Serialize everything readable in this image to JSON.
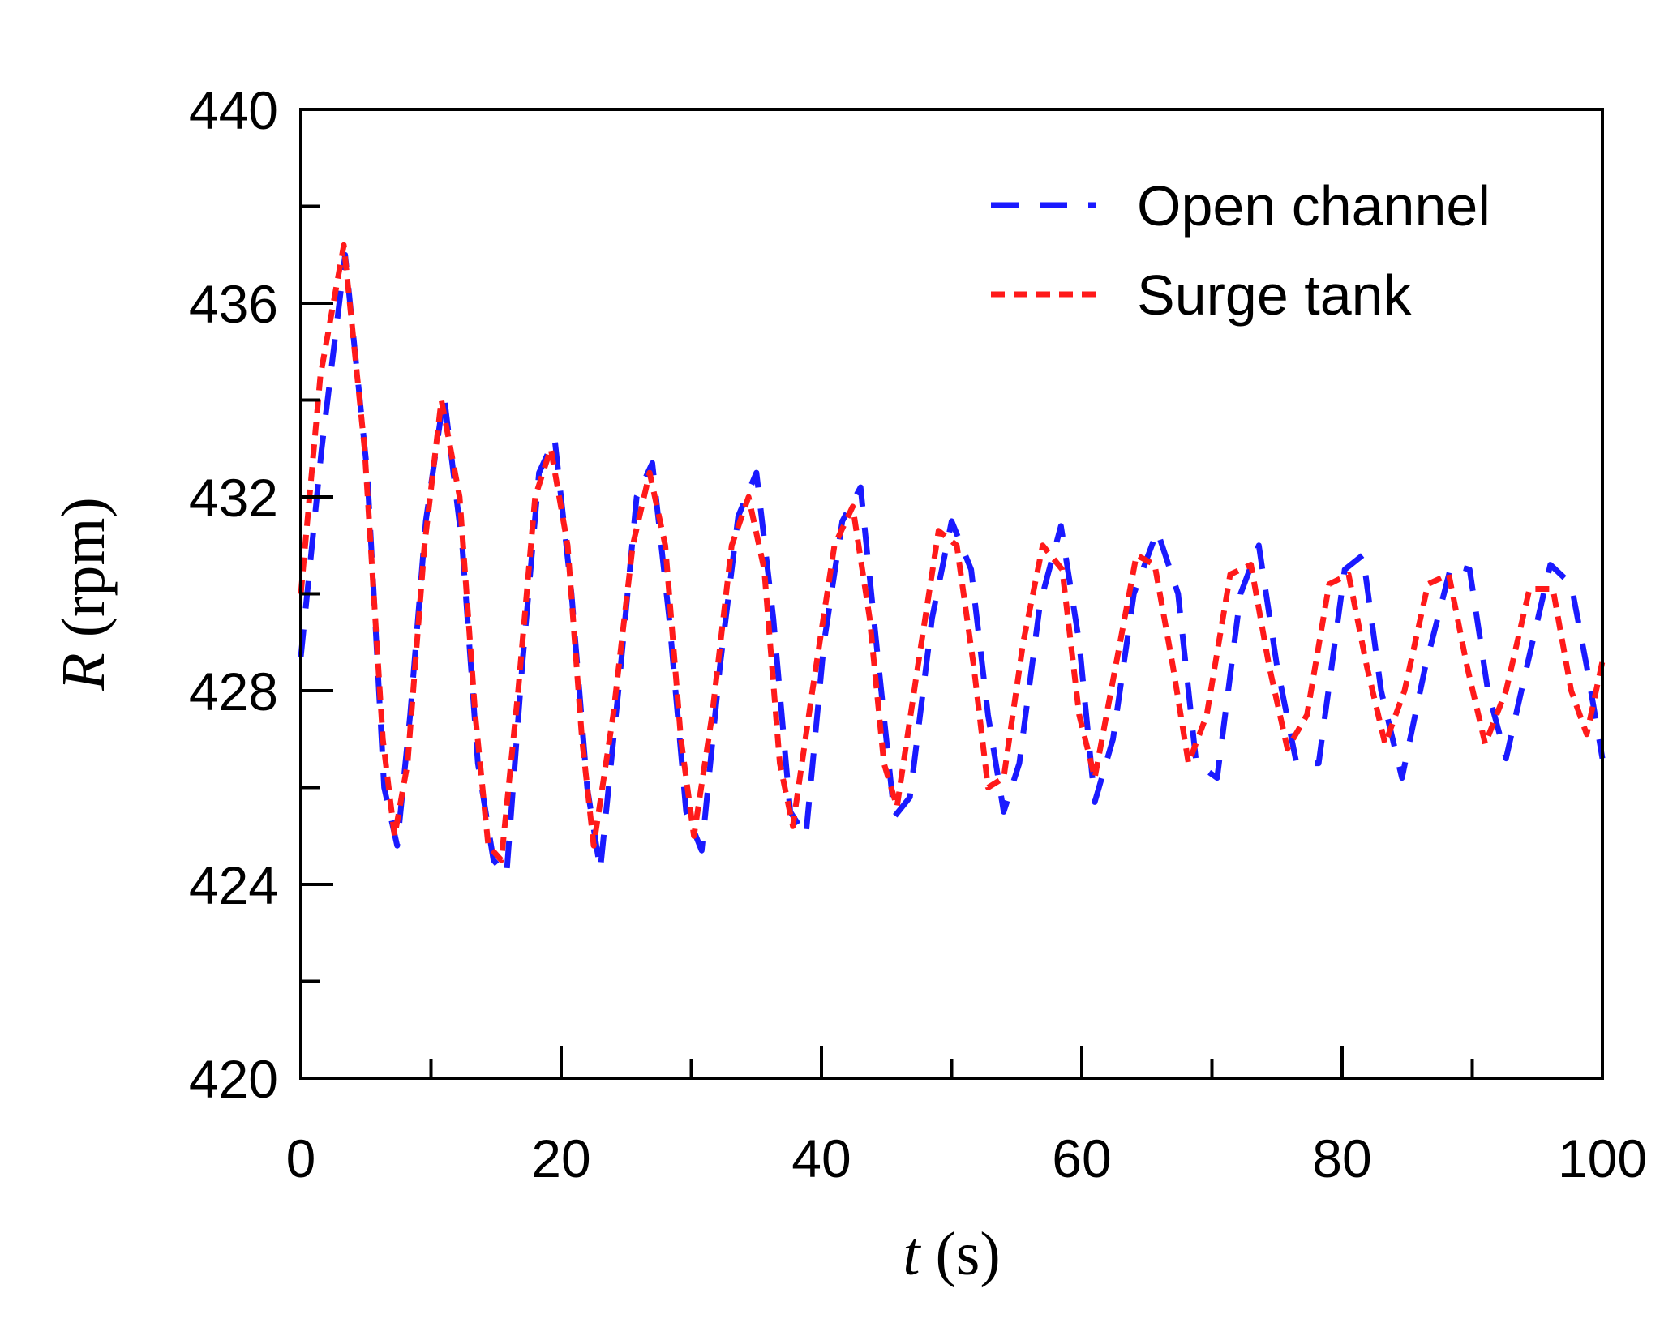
{
  "chart_data": {
    "type": "line",
    "title": "",
    "xlabel": {
      "var": "t",
      "unit": " (s)"
    },
    "ylabel": {
      "var": "R",
      "unit": " (rpm)"
    },
    "xlim": [
      0,
      100
    ],
    "ylim": [
      420,
      440
    ],
    "xticks": [
      0,
      20,
      40,
      60,
      80,
      100
    ],
    "xticks_minor": [
      10,
      30,
      50,
      70,
      90
    ],
    "yticks": [
      420,
      424,
      428,
      432,
      436,
      440
    ],
    "yticks_minor": [
      422,
      426,
      430,
      434,
      438
    ],
    "grid": false,
    "legend_position": "top-right",
    "series": [
      {
        "name": "Open channel",
        "color": "#1a1aff",
        "style": "long-dash",
        "x": [
          0,
          1.6,
          3.4,
          5.1,
          6.4,
          7.4,
          8.4,
          9.6,
          11.0,
          12.4,
          13.6,
          14.8,
          15.8,
          17.0,
          18.3,
          19.5,
          20.8,
          22.0,
          23.0,
          24.4,
          25.8,
          27.0,
          28.3,
          29.6,
          30.8,
          32.2,
          33.6,
          35.0,
          36.3,
          37.6,
          38.8,
          40.2,
          41.6,
          43.0,
          44.4,
          45.6,
          46.8,
          48.5,
          50.0,
          51.5,
          52.8,
          54.0,
          55.2,
          56.8,
          58.4,
          59.8,
          61.0,
          62.4,
          64.0,
          65.8,
          67.4,
          68.8,
          70.4,
          72.2,
          73.6,
          75.0,
          76.5,
          78.2,
          80.2,
          81.6,
          83.0,
          84.6,
          86.4,
          88.4,
          89.8,
          91.2,
          92.6,
          94.2,
          96.0,
          97.6,
          98.8,
          100
        ],
        "y": [
          428.7,
          433.0,
          437.0,
          432.5,
          426.0,
          424.8,
          427.5,
          431.5,
          434.1,
          431.0,
          426.5,
          424.5,
          424.2,
          428.5,
          432.5,
          433.2,
          430.0,
          426.0,
          424.3,
          428.0,
          432.0,
          432.7,
          429.5,
          425.5,
          424.7,
          428.5,
          431.6,
          432.5,
          429.5,
          425.5,
          425.0,
          429.0,
          431.5,
          432.2,
          428.5,
          425.4,
          425.8,
          429.5,
          431.5,
          430.5,
          427.5,
          425.5,
          426.5,
          429.8,
          431.4,
          429.0,
          425.7,
          427.0,
          430.0,
          431.3,
          430.0,
          426.5,
          426.2,
          430.0,
          431.0,
          428.5,
          426.5,
          426.5,
          430.5,
          430.8,
          428.0,
          426.2,
          428.5,
          430.6,
          430.5,
          428.0,
          426.6,
          428.5,
          430.6,
          430.2,
          428.5,
          426.6
        ]
      },
      {
        "name": "Surge tank",
        "color": "#ff1a1a",
        "style": "short-dash",
        "x": [
          0,
          1.5,
          3.3,
          4.9,
          6.3,
          7.2,
          8.2,
          9.5,
          10.8,
          12.2,
          13.4,
          14.4,
          15.4,
          16.7,
          18.0,
          19.2,
          20.5,
          21.6,
          22.5,
          24.0,
          25.5,
          26.8,
          28.0,
          29.2,
          30.2,
          31.6,
          33.1,
          34.4,
          35.6,
          36.8,
          37.8,
          39.3,
          41.0,
          42.4,
          43.7,
          44.8,
          45.8,
          47.4,
          49.0,
          50.4,
          51.7,
          52.8,
          54.0,
          55.5,
          57.0,
          58.5,
          59.8,
          61.0,
          62.6,
          64.2,
          65.6,
          67.0,
          68.2,
          69.6,
          71.4,
          73.0,
          74.4,
          75.8,
          77.3,
          79.0,
          80.5,
          81.9,
          83.3,
          84.8,
          86.6,
          88.2,
          89.6,
          91.0,
          92.6,
          94.4,
          96.2,
          97.6,
          98.8,
          100
        ],
        "y": [
          430.0,
          434.5,
          437.2,
          433.0,
          427.0,
          425.0,
          426.5,
          431.0,
          434.0,
          432.0,
          427.5,
          424.8,
          424.5,
          428.0,
          432.0,
          433.0,
          431.0,
          427.0,
          424.8,
          427.5,
          431.0,
          432.5,
          431.0,
          427.0,
          425.0,
          427.5,
          431.0,
          432.0,
          430.5,
          426.5,
          425.2,
          428.0,
          431.0,
          431.8,
          429.5,
          426.5,
          425.6,
          428.5,
          431.3,
          431.0,
          428.5,
          426.0,
          426.2,
          429.0,
          431.0,
          430.5,
          427.5,
          426.2,
          428.5,
          430.8,
          430.6,
          428.5,
          426.5,
          427.5,
          430.4,
          430.6,
          428.5,
          426.8,
          427.5,
          430.2,
          430.4,
          428.5,
          426.9,
          428.0,
          430.2,
          430.4,
          428.5,
          426.9,
          428.0,
          430.1,
          430.1,
          428.0,
          427.1,
          428.6
        ]
      }
    ]
  }
}
